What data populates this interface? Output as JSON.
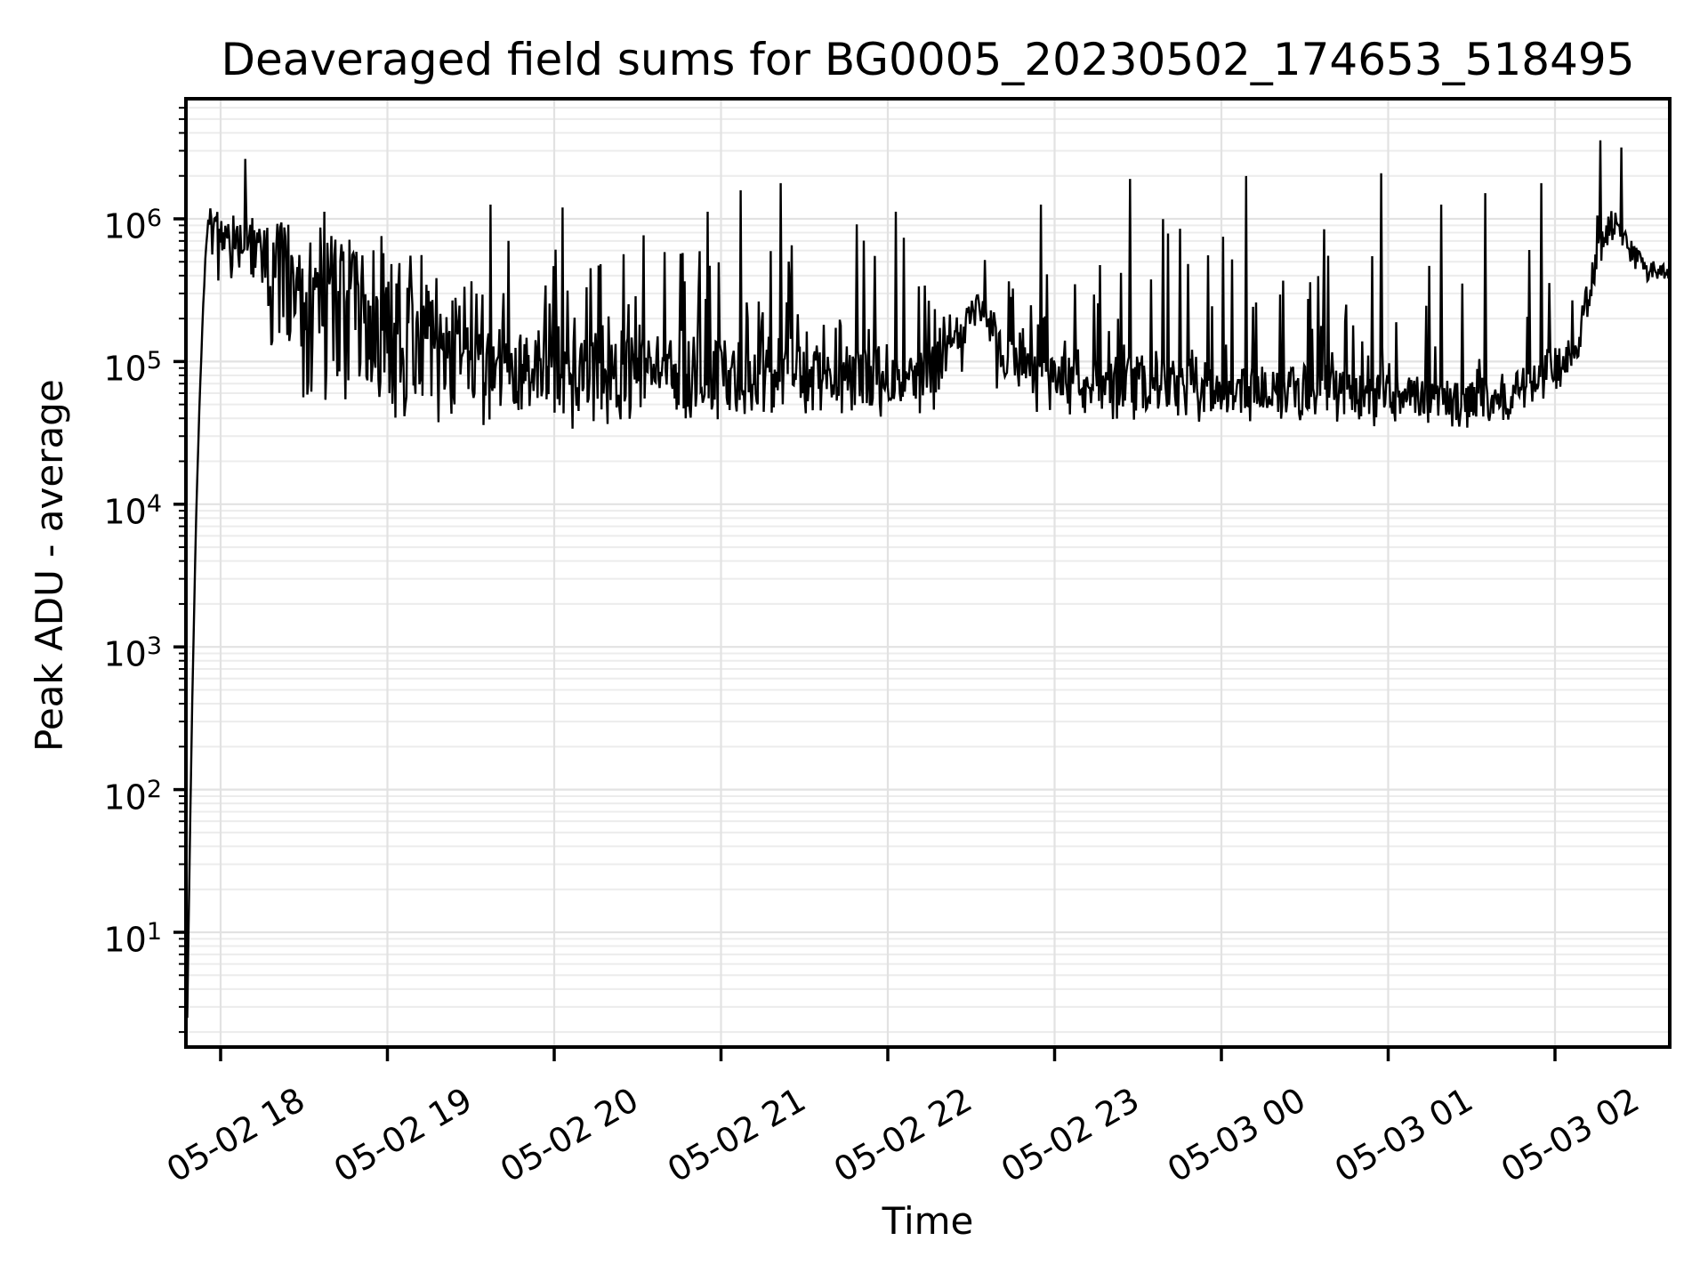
{
  "chart_data": {
    "type": "line",
    "title": "Deaveraged field sums for BG0005_20230502_174653_518495",
    "xlabel": "Time",
    "ylabel": "Peak ADU - average",
    "x_scale": "time",
    "y_scale": "log",
    "grid": {
      "major": true,
      "minor": true,
      "vertical_minor": false
    },
    "legend": null,
    "line_color": "#000000",
    "grid_major_color": "#e2e2e2",
    "grid_minor_color": "#ececec",
    "spine_color": "#000000",
    "background_color": "#ffffff",
    "xlim_hours": [
      17.792,
      26.688
    ],
    "ylim": [
      1.6,
      6900000
    ],
    "x_ticks": [
      {
        "label": "05-02 18",
        "hour": 18
      },
      {
        "label": "05-02 19",
        "hour": 19
      },
      {
        "label": "05-02 20",
        "hour": 20
      },
      {
        "label": "05-02 21",
        "hour": 21
      },
      {
        "label": "05-02 22",
        "hour": 22
      },
      {
        "label": "05-02 23",
        "hour": 23
      },
      {
        "label": "05-03 00",
        "hour": 24
      },
      {
        "label": "05-03 01",
        "hour": 25
      },
      {
        "label": "05-03 02",
        "hour": 26
      }
    ],
    "y_ticks": [
      {
        "label": "10⁶",
        "base": "10",
        "exp": "6",
        "value": 1000000
      },
      {
        "label": "10⁵",
        "base": "10",
        "exp": "5",
        "value": 100000
      },
      {
        "label": "10⁴",
        "base": "10",
        "exp": "4",
        "value": 10000
      },
      {
        "label": "10³",
        "base": "10",
        "exp": "3",
        "value": 1000
      },
      {
        "label": "10²",
        "base": "10",
        "exp": "2",
        "value": 100
      },
      {
        "label": "10¹",
        "base": "10",
        "exp": "1",
        "value": 10
      }
    ],
    "sampling_step_hours": 0.006,
    "noise_seed": 7,
    "series_envelope_log10": [
      {
        "t": 17.8,
        "base": 0.4,
        "amp": 0.0,
        "spike_p": 0.0,
        "spike_top": 6.2,
        "dip_p": 0.0,
        "dip_bot": 0.4
      },
      {
        "t": 17.815,
        "base": 1.6,
        "amp": 0.0,
        "spike_p": 0.0,
        "spike_top": 6.2,
        "dip_p": 0.0,
        "dip_bot": 1.6
      },
      {
        "t": 17.832,
        "base": 2.75,
        "amp": 0.0,
        "spike_p": 0.0,
        "spike_top": 6.2,
        "dip_p": 0.0,
        "dip_bot": 2.75
      },
      {
        "t": 17.852,
        "base": 3.85,
        "amp": 0.0,
        "spike_p": 0.0,
        "spike_top": 6.2,
        "dip_p": 0.0,
        "dip_bot": 3.85
      },
      {
        "t": 17.872,
        "base": 4.65,
        "amp": 0.0,
        "spike_p": 0.0,
        "spike_top": 6.2,
        "dip_p": 0.0,
        "dip_bot": 4.65
      },
      {
        "t": 17.892,
        "base": 5.3,
        "amp": 0.02,
        "spike_p": 0.0,
        "spike_top": 6.2,
        "dip_p": 0.0,
        "dip_bot": 5.2
      },
      {
        "t": 17.912,
        "base": 5.78,
        "amp": 0.05,
        "spike_p": 0.0,
        "spike_top": 6.2,
        "dip_p": 0.0,
        "dip_bot": 5.6
      },
      {
        "t": 17.932,
        "base": 6.02,
        "amp": 0.08,
        "spike_p": 0.02,
        "spike_top": 6.18,
        "dip_p": 0.0,
        "dip_bot": 5.7
      },
      {
        "t": 17.97,
        "base": 5.92,
        "amp": 0.13,
        "spike_p": 0.03,
        "spike_top": 6.15,
        "dip_p": 0.02,
        "dip_bot": 5.5
      },
      {
        "t": 18.06,
        "base": 5.85,
        "amp": 0.18,
        "spike_p": 0.05,
        "spike_top": 6.12,
        "dip_p": 0.06,
        "dip_bot": 5.0
      },
      {
        "t": 18.22,
        "base": 5.78,
        "amp": 0.24,
        "spike_p": 0.06,
        "spike_top": 6.08,
        "dip_p": 0.11,
        "dip_bot": 4.8
      },
      {
        "t": 18.42,
        "base": 5.5,
        "amp": 0.42,
        "spike_p": 0.08,
        "spike_top": 6.0,
        "dip_p": 0.14,
        "dip_bot": 4.65
      },
      {
        "t": 18.85,
        "base": 5.3,
        "amp": 0.5,
        "spike_p": 0.08,
        "spike_top": 5.95,
        "dip_p": 0.14,
        "dip_bot": 4.6
      },
      {
        "t": 19.25,
        "base": 5.18,
        "amp": 0.42,
        "spike_p": 0.09,
        "spike_top": 5.95,
        "dip_p": 0.12,
        "dip_bot": 4.58
      },
      {
        "t": 19.55,
        "base": 5.0,
        "amp": 0.32,
        "spike_p": 0.14,
        "spike_top": 6.02,
        "dip_p": 0.08,
        "dip_bot": 4.52
      },
      {
        "t": 19.95,
        "base": 4.95,
        "amp": 0.28,
        "spike_p": 0.15,
        "spike_top": 6.0,
        "dip_p": 0.07,
        "dip_bot": 4.5
      },
      {
        "t": 20.35,
        "base": 4.92,
        "amp": 0.26,
        "spike_p": 0.15,
        "spike_top": 5.95,
        "dip_p": 0.06,
        "dip_bot": 4.55
      },
      {
        "t": 20.85,
        "base": 4.9,
        "amp": 0.25,
        "spike_p": 0.15,
        "spike_top": 5.95,
        "dip_p": 0.05,
        "dip_bot": 4.58
      },
      {
        "t": 21.35,
        "base": 4.88,
        "amp": 0.24,
        "spike_p": 0.15,
        "spike_top": 6.0,
        "dip_p": 0.05,
        "dip_bot": 4.58
      },
      {
        "t": 21.85,
        "base": 4.9,
        "amp": 0.23,
        "spike_p": 0.14,
        "spike_top": 6.0,
        "dip_p": 0.05,
        "dip_bot": 4.6
      },
      {
        "t": 22.3,
        "base": 4.95,
        "amp": 0.18,
        "spike_p": 0.12,
        "spike_top": 5.9,
        "dip_p": 0.04,
        "dip_bot": 4.62
      },
      {
        "t": 22.47,
        "base": 5.28,
        "amp": 0.14,
        "spike_p": 0.08,
        "spike_top": 5.9,
        "dip_p": 0.03,
        "dip_bot": 4.85
      },
      {
        "t": 22.56,
        "base": 5.4,
        "amp": 0.12,
        "spike_p": 0.06,
        "spike_top": 5.9,
        "dip_p": 0.02,
        "dip_bot": 4.9
      },
      {
        "t": 22.72,
        "base": 5.0,
        "amp": 0.18,
        "spike_p": 0.12,
        "spike_top": 5.9,
        "dip_p": 0.04,
        "dip_bot": 4.65
      },
      {
        "t": 23.05,
        "base": 4.88,
        "amp": 0.2,
        "spike_p": 0.14,
        "spike_top": 6.0,
        "dip_p": 0.05,
        "dip_bot": 4.6
      },
      {
        "t": 23.55,
        "base": 4.85,
        "amp": 0.19,
        "spike_p": 0.14,
        "spike_top": 6.05,
        "dip_p": 0.05,
        "dip_bot": 4.56
      },
      {
        "t": 24.05,
        "base": 4.82,
        "amp": 0.18,
        "spike_p": 0.13,
        "spike_top": 6.05,
        "dip_p": 0.05,
        "dip_bot": 4.55
      },
      {
        "t": 24.55,
        "base": 4.8,
        "amp": 0.17,
        "spike_p": 0.13,
        "spike_top": 6.0,
        "dip_p": 0.05,
        "dip_bot": 4.55
      },
      {
        "t": 25.05,
        "base": 4.75,
        "amp": 0.15,
        "spike_p": 0.11,
        "spike_top": 5.95,
        "dip_p": 0.04,
        "dip_bot": 4.53
      },
      {
        "t": 25.45,
        "base": 4.72,
        "amp": 0.14,
        "spike_p": 0.1,
        "spike_top": 5.9,
        "dip_p": 0.04,
        "dip_bot": 4.52
      },
      {
        "t": 25.75,
        "base": 4.78,
        "amp": 0.15,
        "spike_p": 0.1,
        "spike_top": 5.95,
        "dip_p": 0.03,
        "dip_bot": 4.6
      },
      {
        "t": 26.02,
        "base": 4.95,
        "amp": 0.16,
        "spike_p": 0.1,
        "spike_top": 6.0,
        "dip_p": 0.02,
        "dip_bot": 4.72
      },
      {
        "t": 26.12,
        "base": 5.08,
        "amp": 0.16,
        "spike_p": 0.08,
        "spike_top": 6.0,
        "dip_p": 0.02,
        "dip_bot": 4.85
      },
      {
        "t": 26.22,
        "base": 5.58,
        "amp": 0.14,
        "spike_p": 0.06,
        "spike_top": 6.1,
        "dip_p": 0.0,
        "dip_bot": 5.3
      },
      {
        "t": 26.31,
        "base": 5.92,
        "amp": 0.11,
        "spike_p": 0.04,
        "spike_top": 6.2,
        "dip_p": 0.0,
        "dip_bot": 5.6
      },
      {
        "t": 26.39,
        "base": 5.95,
        "amp": 0.1,
        "spike_p": 0.02,
        "spike_top": 6.1,
        "dip_p": 0.0,
        "dip_bot": 5.65
      },
      {
        "t": 26.46,
        "base": 5.76,
        "amp": 0.09,
        "spike_p": 0.0,
        "spike_top": 6.0,
        "dip_p": 0.0,
        "dip_bot": 5.55
      },
      {
        "t": 26.56,
        "base": 5.62,
        "amp": 0.08,
        "spike_p": 0.0,
        "spike_top": 5.9,
        "dip_p": 0.0,
        "dip_bot": 5.45
      },
      {
        "t": 26.688,
        "base": 5.63,
        "amp": 0.08,
        "spike_p": 0.0,
        "spike_top": 5.9,
        "dip_p": 0.0,
        "dip_bot": 5.45
      }
    ],
    "notable_spikes_log10": [
      [
        18.15,
        6.42
      ],
      [
        18.62,
        6.05
      ],
      [
        19.62,
        6.1
      ],
      [
        20.05,
        6.08
      ],
      [
        20.92,
        6.05
      ],
      [
        21.12,
        6.2
      ],
      [
        21.36,
        6.25
      ],
      [
        22.05,
        6.05
      ],
      [
        22.92,
        6.1
      ],
      [
        23.45,
        6.28
      ],
      [
        24.15,
        6.3
      ],
      [
        24.96,
        6.32
      ],
      [
        25.32,
        6.1
      ],
      [
        25.58,
        6.18
      ],
      [
        25.92,
        6.25
      ],
      [
        26.27,
        6.55
      ],
      [
        26.4,
        6.5
      ]
    ]
  }
}
